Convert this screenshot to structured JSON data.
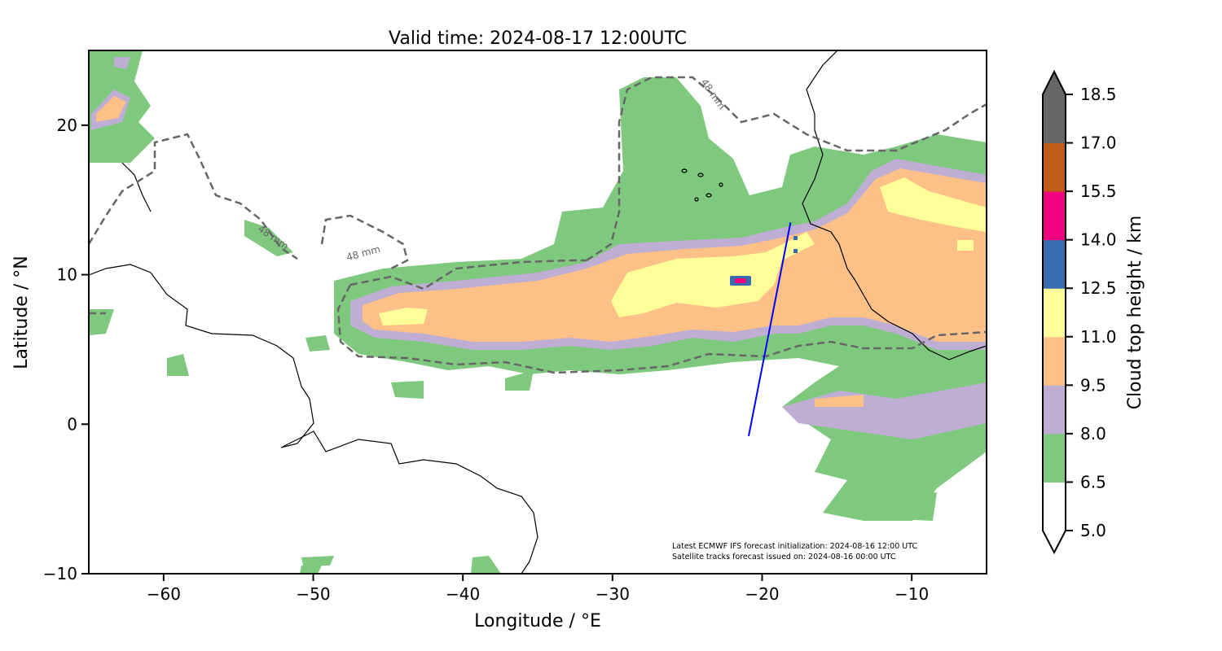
{
  "chart_data": {
    "type": "heatmap",
    "title": "Valid time: 2024-08-17 12:00UTC",
    "xlabel": "Longitude / °E",
    "ylabel": "Latitude / °N",
    "xlim": [
      -65,
      -5
    ],
    "ylim": [
      -10,
      25
    ],
    "xticks": [
      -60,
      -50,
      -40,
      -30,
      -20,
      -10
    ],
    "xtick_labels": [
      "−60",
      "−50",
      "−40",
      "−30",
      "−20",
      "−10"
    ],
    "yticks": [
      -10,
      0,
      10,
      20
    ],
    "ytick_labels": [
      "−10",
      "0",
      "10",
      "20"
    ],
    "colorbar": {
      "label": "Cloud top height / km",
      "levels": [
        5.0,
        6.5,
        8.0,
        9.5,
        11.0,
        12.5,
        14.0,
        15.5,
        17.0,
        18.5
      ],
      "tick_labels": [
        "5.0",
        "6.5",
        "8.0",
        "9.5",
        "11.0",
        "12.5",
        "14.0",
        "15.5",
        "17.0",
        "18.5"
      ],
      "colors": [
        "#ffffff",
        "#7fc97f",
        "#beaed4",
        "#fdc086",
        "#ffff99",
        "#386cb0",
        "#f0027f",
        "#bf5b17",
        "#666666"
      ],
      "extend": "both"
    },
    "contour": {
      "label": "48 mm",
      "color": "#666666",
      "style": "dashed"
    },
    "satellite_track": {
      "color": "#0000ff",
      "lon": [
        -18.1,
        -20.9
      ],
      "lat": [
        13.5,
        -0.8
      ]
    },
    "annotation": [
      "Latest ECMWF IFS forecast initialization: 2024-08-16 12:00 UTC",
      "Satellite tracks forecast issued on: 2024-08-16 00:00 UTC"
    ]
  }
}
